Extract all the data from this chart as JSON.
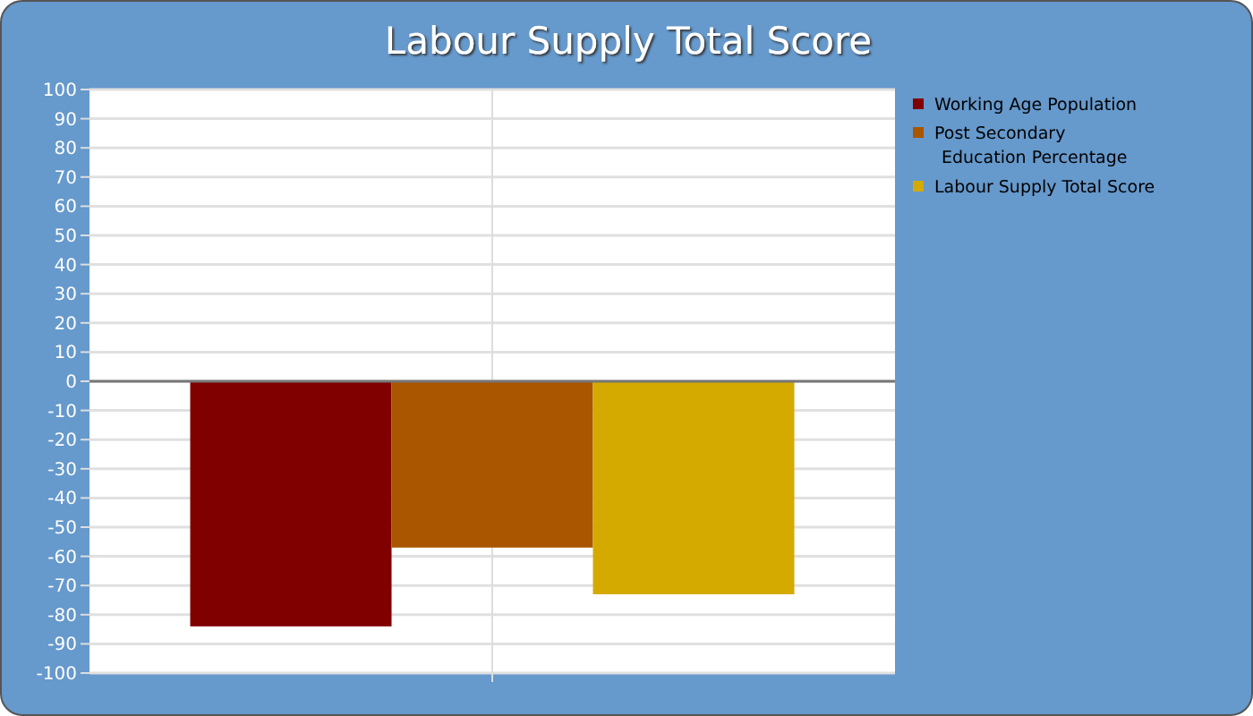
{
  "chart_data": {
    "type": "bar",
    "title": "Labour Supply Total Score",
    "categories": [
      null
    ],
    "series": [
      {
        "name": "Working Age Population",
        "color": "#800000",
        "values": [
          -84
        ]
      },
      {
        "name": "Post Secondary Education Percentage",
        "color": "#aa5500",
        "values": [
          -57
        ]
      },
      {
        "name": "Labour Supply Total Score",
        "color": "#d4aa00",
        "values": [
          -73
        ]
      }
    ],
    "ylim": [
      -100,
      100
    ],
    "yticks": [
      -100,
      -90,
      -80,
      -70,
      -60,
      -50,
      -40,
      -30,
      -20,
      -10,
      0,
      10,
      20,
      30,
      40,
      50,
      60,
      70,
      80,
      90,
      100
    ],
    "grid": true,
    "legend": "top right"
  }
}
